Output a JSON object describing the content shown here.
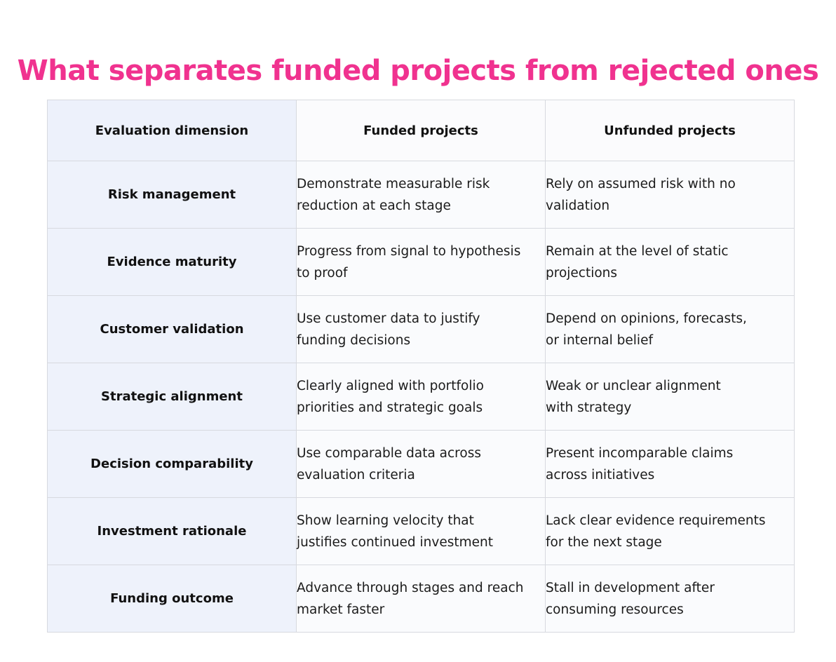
{
  "title": "What separates funded projects from rejected ones",
  "colors": {
    "title": "#f0328f",
    "first_column_bg": "#eef2fb",
    "cell_bg": "#fafbfd",
    "border": "#d7d9df"
  },
  "table": {
    "headers": [
      "Evaluation dimension",
      "Funded projects",
      "Unfunded projects"
    ],
    "rows": [
      {
        "dimension": "Risk management",
        "funded": [
          "Demonstrate measurable risk",
          "reduction at each stage"
        ],
        "unfunded": [
          "Rely on assumed risk with no",
          "validation"
        ]
      },
      {
        "dimension": "Evidence maturity",
        "funded": [
          "Progress from signal to hypothesis",
          "to proof"
        ],
        "unfunded": [
          "Remain at the level of static",
          "projections"
        ]
      },
      {
        "dimension": "Customer validation",
        "funded": [
          "Use customer data to justify",
          "funding decisions"
        ],
        "unfunded": [
          "Depend on opinions, forecasts,",
          "or internal belief"
        ]
      },
      {
        "dimension": "Strategic alignment",
        "funded": [
          "Clearly aligned with portfolio",
          "priorities and strategic goals"
        ],
        "unfunded": [
          "Weak or unclear alignment",
          "with strategy"
        ]
      },
      {
        "dimension": "Decision comparability",
        "funded": [
          "Use comparable data across",
          "evaluation criteria"
        ],
        "unfunded": [
          "Present incomparable claims",
          "across initiatives"
        ]
      },
      {
        "dimension": "Investment rationale",
        "funded": [
          "Show learning velocity that",
          "justifies continued investment"
        ],
        "unfunded": [
          "Lack clear evidence requirements",
          "for the next stage"
        ]
      },
      {
        "dimension": "Funding outcome",
        "funded": [
          "Advance through stages and reach",
          "market faster"
        ],
        "unfunded": [
          "Stall in development after",
          "consuming resources"
        ]
      }
    ]
  }
}
